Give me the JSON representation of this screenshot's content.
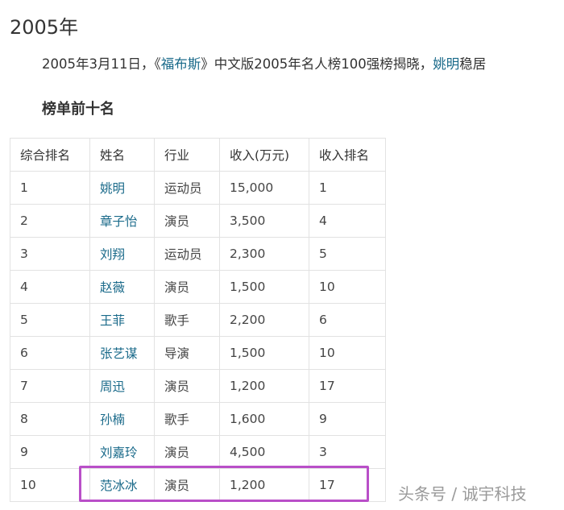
{
  "heading": "2005年",
  "paragraph": {
    "part1": "2005年3月11日，《",
    "link1": "福布斯",
    "part2": "》中文版2005年名人榜100强榜揭晓，",
    "link2": "姚明",
    "part3": "稳居"
  },
  "subheading": "榜单前十名",
  "table": {
    "headers": [
      "综合排名",
      "姓名",
      "行业",
      "收入(万元)",
      "收入排名"
    ],
    "rows": [
      [
        "1",
        "姚明",
        "运动员",
        "15,000",
        "1"
      ],
      [
        "2",
        "章子怡",
        "演员",
        "3,500",
        "4"
      ],
      [
        "3",
        "刘翔",
        "运动员",
        "2,300",
        "5"
      ],
      [
        "4",
        "赵薇",
        "演员",
        "1,500",
        "10"
      ],
      [
        "5",
        "王菲",
        "歌手",
        "2,200",
        "6"
      ],
      [
        "6",
        "张艺谋",
        "导演",
        "1,500",
        "10"
      ],
      [
        "7",
        "周迅",
        "演员",
        "1,200",
        "17"
      ],
      [
        "8",
        "孙楠",
        "歌手",
        "1,600",
        "9"
      ],
      [
        "9",
        "刘嘉玲",
        "演员",
        "4,500",
        "3"
      ],
      [
        "10",
        "范冰冰",
        "演员",
        "1,200",
        "17"
      ]
    ]
  },
  "highlight_color": "#b94fc8",
  "watermark": "头条号 / 诚宇科技"
}
